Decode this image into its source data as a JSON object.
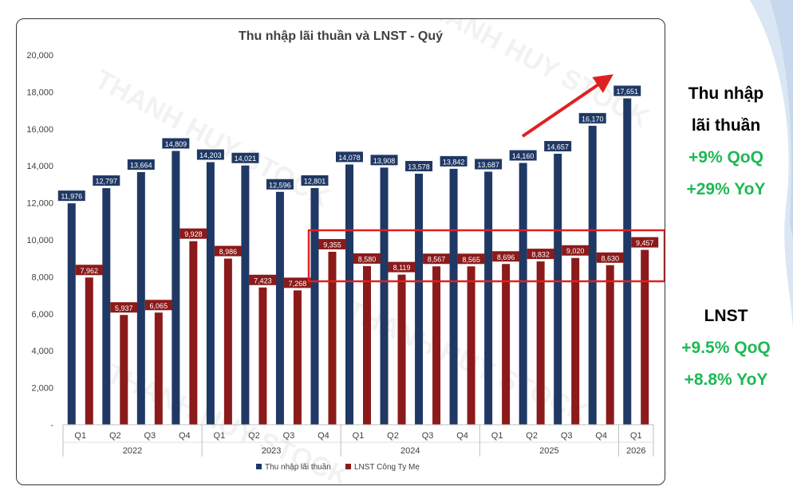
{
  "chart_data": {
    "type": "bar",
    "title": "Thu nhập lãi thuần và LNST - Quý",
    "watermark": "THANH HUY STOCK",
    "categories": [
      "Q1",
      "Q2",
      "Q3",
      "Q4",
      "Q1",
      "Q2",
      "Q3",
      "Q4",
      "Q1",
      "Q2",
      "Q3",
      "Q4",
      "Q1",
      "Q2",
      "Q3",
      "Q4",
      "Q1"
    ],
    "years": [
      {
        "label": "2022",
        "quarters": 4
      },
      {
        "label": "2023",
        "quarters": 4
      },
      {
        "label": "2024",
        "quarters": 4
      },
      {
        "label": "2025",
        "quarters": 4
      },
      {
        "label": "2026",
        "quarters": 1
      }
    ],
    "series": [
      {
        "name": "Thu nhập lãi thuần",
        "color": "#1f3864",
        "values": [
          11976,
          12797,
          13664,
          14809,
          14203,
          14021,
          12596,
          12801,
          14078,
          13908,
          13578,
          13842,
          13687,
          14160,
          14657,
          16170,
          17651
        ]
      },
      {
        "name": "LNST Công Ty Mẹ",
        "color": "#8b1a1a",
        "values": [
          7962,
          5937,
          6065,
          9928,
          8986,
          7423,
          7268,
          9355,
          8580,
          8119,
          8567,
          8565,
          8696,
          8832,
          9020,
          8630,
          9457
        ]
      }
    ],
    "ylim": [
      0,
      20000
    ],
    "yticks": [
      "-",
      "2,000",
      "4,000",
      "6,000",
      "8,000",
      "10,000",
      "12,000",
      "14,000",
      "16,000",
      "18,000",
      "20,000"
    ],
    "legend_position": "bottom",
    "grid": false,
    "highlight_box_color": "#e02020"
  },
  "side_panel": {
    "nii": {
      "title_line1": "Thu nhập",
      "title_line2": "lãi thuần",
      "qoq": "+9% QoQ",
      "yoy": "+29% YoY"
    },
    "lnst": {
      "title": "LNST",
      "qoq": "+9.5% QoQ",
      "yoy": "+8.8% YoY"
    }
  }
}
